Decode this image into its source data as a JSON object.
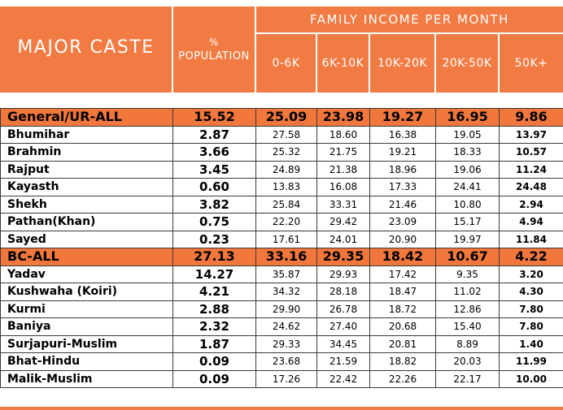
{
  "header": {
    "caste_label": "MAJOR CASTE",
    "pop_symbol": "%",
    "pop_label": "POPULATION",
    "income_label": "FAMILY INCOME PER MONTH",
    "ranges": [
      "0-6K",
      "6K-10K",
      "10K-20K",
      "20K-50K",
      "50K+"
    ]
  },
  "colors": {
    "header_bg": "#f27b43",
    "aggregate_row_bg": "#f2773c",
    "header_text": "#ffffff"
  },
  "rows": [
    {
      "name": "General/UR-ALL",
      "aggregate": true,
      "pop": "15.52",
      "vals": [
        "25.09",
        "23.98",
        "19.27",
        "16.95",
        "9.86"
      ]
    },
    {
      "name": "Bhumihar",
      "aggregate": false,
      "pop": "2.87",
      "vals": [
        "27.58",
        "18.60",
        "16.38",
        "19.05",
        "13.97"
      ]
    },
    {
      "name": "Brahmin",
      "aggregate": false,
      "pop": "3.66",
      "vals": [
        "25.32",
        "21.75",
        "19.21",
        "18.33",
        "10.57"
      ]
    },
    {
      "name": "Rajput",
      "aggregate": false,
      "pop": "3.45",
      "vals": [
        "24.89",
        "21.38",
        "18.96",
        "19.06",
        "11.24"
      ]
    },
    {
      "name": "Kayasth",
      "aggregate": false,
      "pop": "0.60",
      "vals": [
        "13.83",
        "16.08",
        "17.33",
        "24.41",
        "24.48"
      ]
    },
    {
      "name": "Shekh",
      "aggregate": false,
      "pop": "3.82",
      "vals": [
        "25.84",
        "33.31",
        "21.46",
        "10.80",
        "2.94"
      ]
    },
    {
      "name": "Pathan(Khan)",
      "aggregate": false,
      "pop": "0.75",
      "vals": [
        "22.20",
        "29.42",
        "23.09",
        "15.17",
        "4.94"
      ]
    },
    {
      "name": "Sayed",
      "aggregate": false,
      "pop": "0.23",
      "vals": [
        "17.61",
        "24.01",
        "20.90",
        "19.97",
        "11.84"
      ]
    },
    {
      "name": "BC-ALL",
      "aggregate": true,
      "pop": "27.13",
      "vals": [
        "33.16",
        "29.35",
        "18.42",
        "10.67",
        "4.22"
      ]
    },
    {
      "name": "Yadav",
      "aggregate": false,
      "pop": "14.27",
      "vals": [
        "35.87",
        "29.93",
        "17.42",
        "9.35",
        "3.20"
      ]
    },
    {
      "name": "Kushwaha (Koiri)",
      "aggregate": false,
      "pop": "4.21",
      "vals": [
        "34.32",
        "28.18",
        "18.47",
        "11.02",
        "4.30"
      ]
    },
    {
      "name": "Kurmi",
      "aggregate": false,
      "pop": "2.88",
      "vals": [
        "29.90",
        "26.78",
        "18.72",
        "12.86",
        "7.80"
      ]
    },
    {
      "name": "Baniya",
      "aggregate": false,
      "pop": "2.32",
      "vals": [
        "24.62",
        "27.40",
        "20.68",
        "15.40",
        "7.80"
      ]
    },
    {
      "name": "Surjapuri-Muslim",
      "aggregate": false,
      "pop": "1.87",
      "vals": [
        "29.33",
        "34.45",
        "20.81",
        "8.89",
        "1.40"
      ]
    },
    {
      "name": "Bhat-Hindu",
      "aggregate": false,
      "pop": "0.09",
      "vals": [
        "23.68",
        "21.59",
        "18.82",
        "20.03",
        "11.99"
      ]
    },
    {
      "name": "Malik-Muslim",
      "aggregate": false,
      "pop": "0.09",
      "vals": [
        "17.26",
        "22.42",
        "22.26",
        "22.17",
        "10.00"
      ]
    }
  ]
}
